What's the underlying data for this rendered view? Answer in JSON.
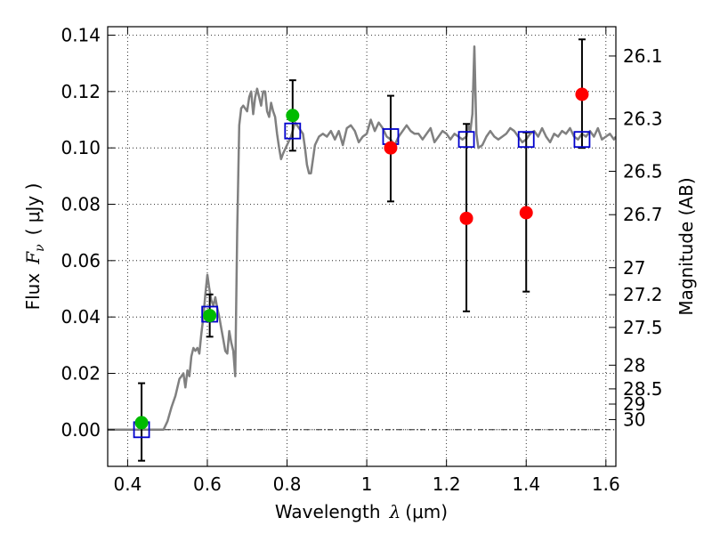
{
  "chart_data": {
    "type": "scatter",
    "xlabel": {
      "prefix": "Wavelength",
      "symbol": "λ",
      "unit": "(μm)"
    },
    "ylabel": {
      "prefix": "Flux",
      "symbol": "F",
      "subscript": "ν",
      "unit": "( μJy )"
    },
    "y2label": "Magnitude (AB)",
    "xlim": [
      0.35,
      1.625
    ],
    "ylim": [
      -0.013,
      0.143
    ],
    "grid": true,
    "x_ticks": [
      0.4,
      0.6,
      0.8,
      1.0,
      1.2,
      1.4,
      1.6
    ],
    "x_tick_labels": [
      "0.4",
      "0.6",
      "0.8",
      "1",
      "1.2",
      "1.4",
      "1.6"
    ],
    "y_ticks": [
      0.0,
      0.02,
      0.04,
      0.06,
      0.08,
      0.1,
      0.12,
      0.14
    ],
    "y_tick_labels": [
      "0.00",
      "0.02",
      "0.04",
      "0.06",
      "0.08",
      "0.10",
      "0.12",
      "0.14"
    ],
    "y2_ticks": [
      {
        "label": "26.1",
        "flux": 0.1326
      },
      {
        "label": "26.3",
        "flux": 0.1103
      },
      {
        "label": "26.5",
        "flux": 0.0917
      },
      {
        "label": "26.7",
        "flux": 0.0763
      },
      {
        "label": "27",
        "flux": 0.0575
      },
      {
        "label": "27.2",
        "flux": 0.0479
      },
      {
        "label": "27.5",
        "flux": 0.0363
      },
      {
        "label": "28",
        "flux": 0.0229
      },
      {
        "label": "28.5",
        "flux": 0.0145
      },
      {
        "label": "29",
        "flux": 0.0091
      },
      {
        "label": "30",
        "flux": 0.0036
      }
    ],
    "zero_line": 0.0,
    "series": [
      {
        "kind": "model_spectrum",
        "color": "#808080",
        "x": [
          0.35,
          0.4,
          0.45,
          0.49,
          0.5,
          0.51,
          0.52,
          0.53,
          0.535,
          0.54,
          0.545,
          0.55,
          0.555,
          0.56,
          0.565,
          0.57,
          0.575,
          0.58,
          0.585,
          0.59,
          0.595,
          0.6,
          0.605,
          0.61,
          0.615,
          0.62,
          0.625,
          0.63,
          0.635,
          0.64,
          0.645,
          0.65,
          0.655,
          0.66,
          0.665,
          0.67,
          0.675,
          0.68,
          0.685,
          0.69,
          0.7,
          0.705,
          0.71,
          0.715,
          0.72,
          0.725,
          0.73,
          0.735,
          0.74,
          0.745,
          0.75,
          0.755,
          0.76,
          0.765,
          0.77,
          0.775,
          0.78,
          0.785,
          0.79,
          0.8,
          0.81,
          0.82,
          0.83,
          0.84,
          0.845,
          0.85,
          0.855,
          0.86,
          0.87,
          0.88,
          0.89,
          0.9,
          0.91,
          0.92,
          0.93,
          0.94,
          0.95,
          0.96,
          0.97,
          0.98,
          0.99,
          1.0,
          1.01,
          1.02,
          1.03,
          1.04,
          1.05,
          1.06,
          1.07,
          1.08,
          1.09,
          1.1,
          1.11,
          1.12,
          1.13,
          1.14,
          1.15,
          1.16,
          1.17,
          1.18,
          1.19,
          1.2,
          1.21,
          1.22,
          1.23,
          1.24,
          1.25,
          1.255,
          1.26,
          1.265,
          1.27,
          1.275,
          1.28,
          1.29,
          1.3,
          1.31,
          1.32,
          1.33,
          1.34,
          1.35,
          1.36,
          1.37,
          1.38,
          1.39,
          1.4,
          1.41,
          1.42,
          1.43,
          1.44,
          1.45,
          1.46,
          1.47,
          1.48,
          1.49,
          1.5,
          1.51,
          1.52,
          1.53,
          1.54,
          1.55,
          1.56,
          1.57,
          1.58,
          1.59,
          1.6,
          1.61,
          1.62,
          1.625
        ],
        "y": [
          0.0,
          0.0,
          0.0,
          0.0,
          0.003,
          0.008,
          0.012,
          0.018,
          0.019,
          0.02,
          0.015,
          0.021,
          0.019,
          0.026,
          0.029,
          0.028,
          0.029,
          0.027,
          0.034,
          0.04,
          0.048,
          0.055,
          0.05,
          0.046,
          0.044,
          0.047,
          0.043,
          0.04,
          0.036,
          0.032,
          0.028,
          0.027,
          0.035,
          0.031,
          0.028,
          0.019,
          0.07,
          0.108,
          0.114,
          0.115,
          0.113,
          0.118,
          0.12,
          0.112,
          0.118,
          0.121,
          0.118,
          0.115,
          0.12,
          0.12,
          0.113,
          0.111,
          0.116,
          0.113,
          0.111,
          0.105,
          0.1,
          0.096,
          0.098,
          0.101,
          0.104,
          0.109,
          0.107,
          0.105,
          0.1,
          0.094,
          0.091,
          0.091,
          0.101,
          0.104,
          0.105,
          0.104,
          0.106,
          0.103,
          0.106,
          0.101,
          0.107,
          0.108,
          0.106,
          0.102,
          0.104,
          0.105,
          0.11,
          0.106,
          0.109,
          0.107,
          0.104,
          0.103,
          0.101,
          0.104,
          0.106,
          0.108,
          0.106,
          0.105,
          0.105,
          0.103,
          0.105,
          0.107,
          0.102,
          0.104,
          0.106,
          0.105,
          0.103,
          0.105,
          0.104,
          0.103,
          0.104,
          0.108,
          0.106,
          0.112,
          0.136,
          0.105,
          0.1,
          0.101,
          0.104,
          0.106,
          0.104,
          0.103,
          0.104,
          0.105,
          0.107,
          0.106,
          0.104,
          0.102,
          0.103,
          0.105,
          0.106,
          0.104,
          0.107,
          0.104,
          0.102,
          0.105,
          0.104,
          0.106,
          0.105,
          0.107,
          0.104,
          0.103,
          0.105,
          0.104,
          0.106,
          0.104,
          0.107,
          0.103,
          0.104,
          0.105,
          0.103,
          0.104
        ]
      },
      {
        "kind": "model_photometry",
        "marker": "open-square",
        "color": "#0000cc",
        "x": [
          0.435,
          0.606,
          0.814,
          1.06,
          1.25,
          1.4,
          1.54
        ],
        "y": [
          0.0,
          0.041,
          0.106,
          0.104,
          0.103,
          0.103,
          0.103
        ]
      },
      {
        "kind": "observed_photometry",
        "marker": "filled-circle",
        "color": "#00bb00",
        "x": [
          0.435,
          0.606,
          0.814
        ],
        "y": [
          0.0025,
          0.0405,
          0.1115
        ],
        "yerr_low": [
          0.0135,
          0.0075,
          0.0125
        ],
        "yerr_high": [
          0.014,
          0.0075,
          0.0125
        ]
      },
      {
        "kind": "observed_photometry",
        "marker": "filled-circle",
        "color": "#ff0000",
        "x": [
          1.06,
          1.25,
          1.4,
          1.54
        ],
        "y": [
          0.1,
          0.075,
          0.077,
          0.119
        ],
        "yerr_low": [
          0.019,
          0.033,
          0.028,
          0.019
        ],
        "yerr_high": [
          0.0185,
          0.0335,
          0.0285,
          0.0195
        ]
      }
    ]
  }
}
